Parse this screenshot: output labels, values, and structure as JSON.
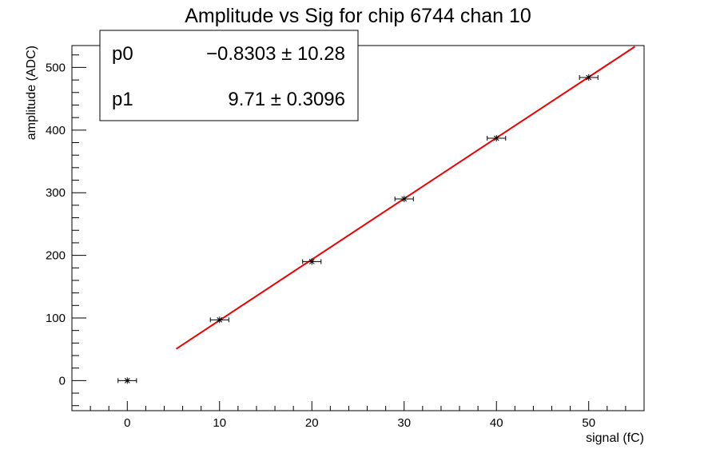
{
  "chart_data": {
    "type": "scatter",
    "title": "Amplitude vs Sig for chip 6744 chan 10",
    "xlabel": "signal (fC)",
    "ylabel": "amplitude (ADC)",
    "xlim": [
      -6,
      56
    ],
    "ylim": [
      -48,
      535
    ],
    "x_ticks": [
      0,
      10,
      20,
      30,
      40,
      50
    ],
    "y_ticks": [
      0,
      100,
      200,
      300,
      400,
      500
    ],
    "grid": false,
    "points": [
      {
        "x": 0,
        "y": 0,
        "xerr": 1.0
      },
      {
        "x": 10,
        "y": 97,
        "xerr": 1.0
      },
      {
        "x": 20,
        "y": 190,
        "xerr": 1.0
      },
      {
        "x": 30,
        "y": 290,
        "xerr": 1.0
      },
      {
        "x": 40,
        "y": 387,
        "xerr": 1.0
      },
      {
        "x": 50,
        "y": 484,
        "xerr": 1.0
      }
    ],
    "fit": {
      "function": "pol1",
      "x_range": [
        5.3,
        55
      ],
      "color": "#ee0000",
      "params": [
        {
          "name": "p0",
          "value": "−0.8303",
          "error": "10.28",
          "numeric": -0.8303
        },
        {
          "name": "p1",
          "value": "9.71",
          "error": "0.3096",
          "numeric": 9.71
        }
      ]
    },
    "pm_symbol": "±"
  }
}
